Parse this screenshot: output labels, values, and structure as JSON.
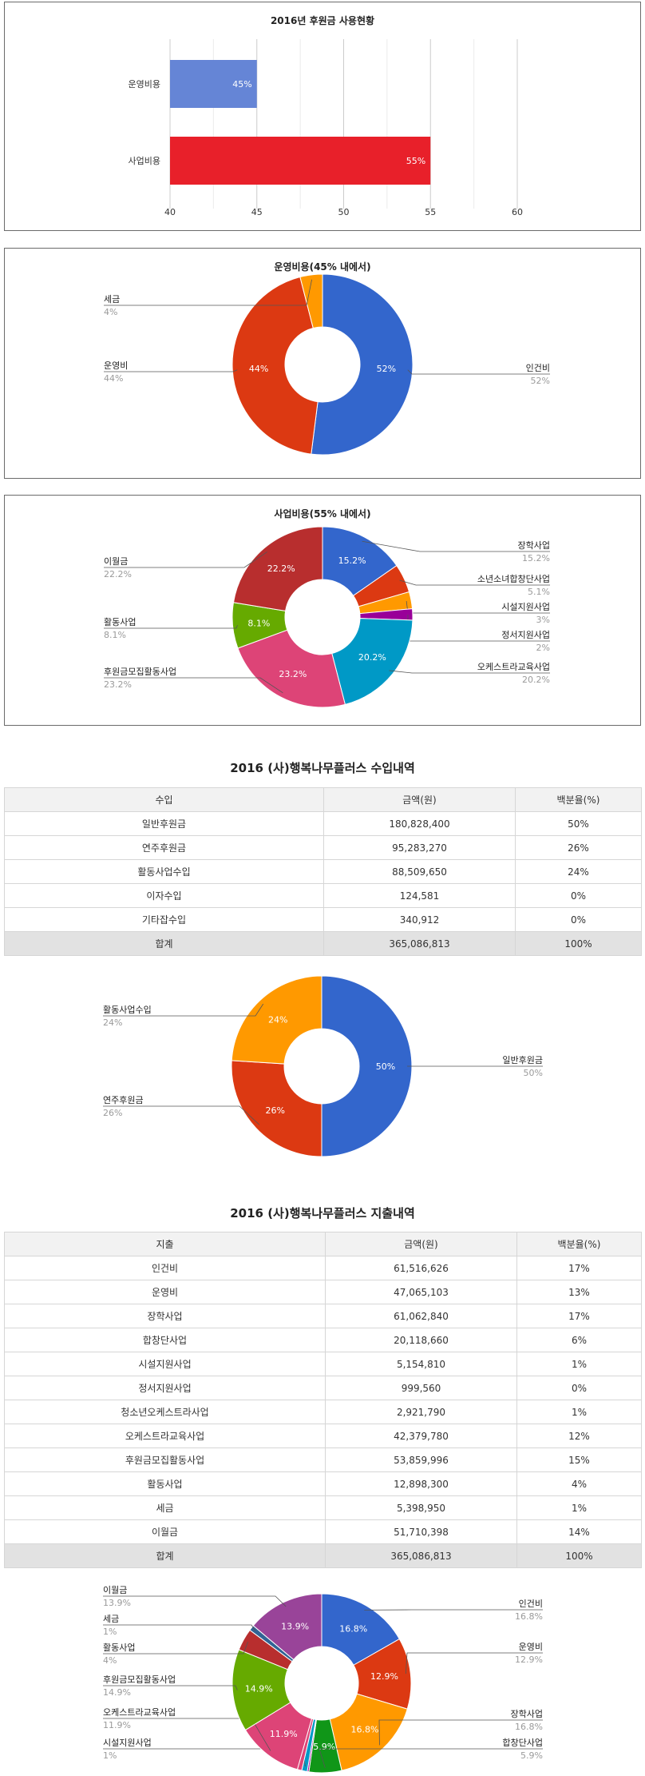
{
  "colors": {
    "blue": "#3366cc",
    "red": "#dc3912",
    "orange": "#ff9900",
    "green": "#109618",
    "purple": "#990099",
    "teal": "#0099c6",
    "pink": "#dd4477",
    "lime": "#66aa00",
    "brick": "#b82e2e",
    "bar_blue": "#6585d6",
    "bar_red": "#e8202a"
  },
  "chart_data": [
    {
      "id": "usage",
      "type": "bar",
      "title": "2016년 후원금 사용현황",
      "categories": [
        "운영비용",
        "사업비용"
      ],
      "values": [
        45,
        55
      ],
      "data_labels": [
        "45%",
        "55%"
      ],
      "xlim": [
        40,
        60
      ],
      "ticks": [
        40,
        45,
        50,
        55,
        60
      ],
      "colors": [
        "#6585d6",
        "#e8202a"
      ],
      "grid": true
    },
    {
      "id": "ops",
      "type": "pie",
      "title": "운영비용(45% 내에서)",
      "donut": true,
      "slices": [
        {
          "name": "인건비",
          "value": 52,
          "label": "52%",
          "inner": "52%",
          "color": "#3366cc"
        },
        {
          "name": "운영비",
          "value": 44,
          "label": "44%",
          "inner": "44%",
          "color": "#dc3912"
        },
        {
          "name": "세금",
          "value": 4,
          "label": "4%",
          "inner": "",
          "color": "#ff9900"
        }
      ]
    },
    {
      "id": "biz",
      "type": "pie",
      "title": "사업비용(55% 내에서)",
      "donut": true,
      "slices": [
        {
          "name": "장학사업",
          "value": 15.2,
          "label": "15.2%",
          "inner": "15.2%",
          "color": "#3366cc"
        },
        {
          "name": "소년소녀합창단사업",
          "value": 5.1,
          "label": "5.1%",
          "inner": "",
          "color": "#dc3912"
        },
        {
          "name": "시설지원사업",
          "value": 3,
          "label": "3%",
          "inner": "",
          "color": "#ff9900"
        },
        {
          "name": "정서지원사업",
          "value": 2,
          "label": "2%",
          "inner": "",
          "color": "#990099"
        },
        {
          "name": "오케스트라교육사업",
          "value": 20.2,
          "label": "20.2%",
          "inner": "20.2%",
          "color": "#0099c6"
        },
        {
          "name": "후원금모집활동사업",
          "value": 23.2,
          "label": "23.2%",
          "inner": "23.2%",
          "color": "#dd4477"
        },
        {
          "name": "활동사업",
          "value": 8.1,
          "label": "8.1%",
          "inner": "8.1%",
          "color": "#66aa00"
        },
        {
          "name": "이월금",
          "value": 22.2,
          "label": "22.2%",
          "inner": "22.2%",
          "color": "#b82e2e"
        }
      ]
    },
    {
      "id": "income_pie",
      "type": "pie",
      "title": "",
      "donut": true,
      "slices": [
        {
          "name": "일반후원금",
          "value": 50,
          "label": "50%",
          "inner": "50%",
          "color": "#3366cc"
        },
        {
          "name": "연주후원금",
          "value": 26,
          "label": "26%",
          "inner": "26%",
          "color": "#dc3912"
        },
        {
          "name": "활동사업수입",
          "value": 24,
          "label": "24%",
          "inner": "24%",
          "color": "#ff9900"
        }
      ]
    },
    {
      "id": "expense_pie",
      "type": "pie",
      "title": "",
      "donut": true,
      "slices": [
        {
          "name": "인건비",
          "value": 16.8,
          "label": "16.8%",
          "inner": "16.8%",
          "color": "#3366cc"
        },
        {
          "name": "운영비",
          "value": 12.9,
          "label": "12.9%",
          "inner": "12.9%",
          "color": "#dc3912"
        },
        {
          "name": "장학사업",
          "value": 16.8,
          "label": "16.8%",
          "inner": "16.8%",
          "color": "#ff9900"
        },
        {
          "name": "합창단사업",
          "value": 5.9,
          "label": "5.9%",
          "inner": "5.9%",
          "color": "#109618"
        },
        {
          "name": "정서지원사업",
          "value": 0.3,
          "label": "",
          "inner": "",
          "color": "#990099"
        },
        {
          "name": "시설지원사업",
          "value": 1,
          "label": "1%",
          "inner": "",
          "color": "#0099c6"
        },
        {
          "name": "청소년오케스트라사업",
          "value": 0.8,
          "label": "",
          "inner": "",
          "color": "#dd4477"
        },
        {
          "name": "오케스트라교육사업",
          "value": 11.9,
          "label": "11.9%",
          "inner": "11.9%",
          "color": "#dd4477"
        },
        {
          "name": "후원금모집활동사업",
          "value": 14.9,
          "label": "14.9%",
          "inner": "14.9%",
          "color": "#66aa00"
        },
        {
          "name": "활동사업",
          "value": 4,
          "label": "4%",
          "inner": "",
          "color": "#b82e2e"
        },
        {
          "name": "세금",
          "value": 1,
          "label": "1%",
          "inner": "",
          "color": "#316395"
        },
        {
          "name": "이월금",
          "value": 13.9,
          "label": "13.9%",
          "inner": "13.9%",
          "color": "#994499"
        }
      ]
    }
  ],
  "income": {
    "title": "2016 (사)행복나무플러스 수입내역",
    "headers": [
      "수입",
      "금액(원)",
      "백분율(%)"
    ],
    "rows": [
      [
        "일반후원금",
        "180,828,400",
        "50%"
      ],
      [
        "연주후원금",
        "95,283,270",
        "26%"
      ],
      [
        "활동사업수입",
        "88,509,650",
        "24%"
      ],
      [
        "이자수입",
        "124,581",
        "0%"
      ],
      [
        "기타잡수입",
        "340,912",
        "0%"
      ]
    ],
    "total": [
      "합계",
      "365,086,813",
      "100%"
    ]
  },
  "expense": {
    "title": "2016 (사)행복나무플러스 지출내역",
    "headers": [
      "지출",
      "금액(원)",
      "백분율(%)"
    ],
    "rows": [
      [
        "인건비",
        "61,516,626",
        "17%"
      ],
      [
        "운영비",
        "47,065,103",
        "13%"
      ],
      [
        "장학사업",
        "61,062,840",
        "17%"
      ],
      [
        "합창단사업",
        "20,118,660",
        "6%"
      ],
      [
        "시설지원사업",
        "5,154,810",
        "1%"
      ],
      [
        "정서지원사업",
        "999,560",
        "0%"
      ],
      [
        "청소년오케스트라사업",
        "2,921,790",
        "1%"
      ],
      [
        "오케스트라교육사업",
        "42,379,780",
        "12%"
      ],
      [
        "후원금모집활동사업",
        "53,859,996",
        "15%"
      ],
      [
        "활동사업",
        "12,898,300",
        "4%"
      ],
      [
        "세금",
        "5,398,950",
        "1%"
      ],
      [
        "이월금",
        "51,710,398",
        "14%"
      ]
    ],
    "total": [
      "합계",
      "365,086,813",
      "100%"
    ]
  }
}
